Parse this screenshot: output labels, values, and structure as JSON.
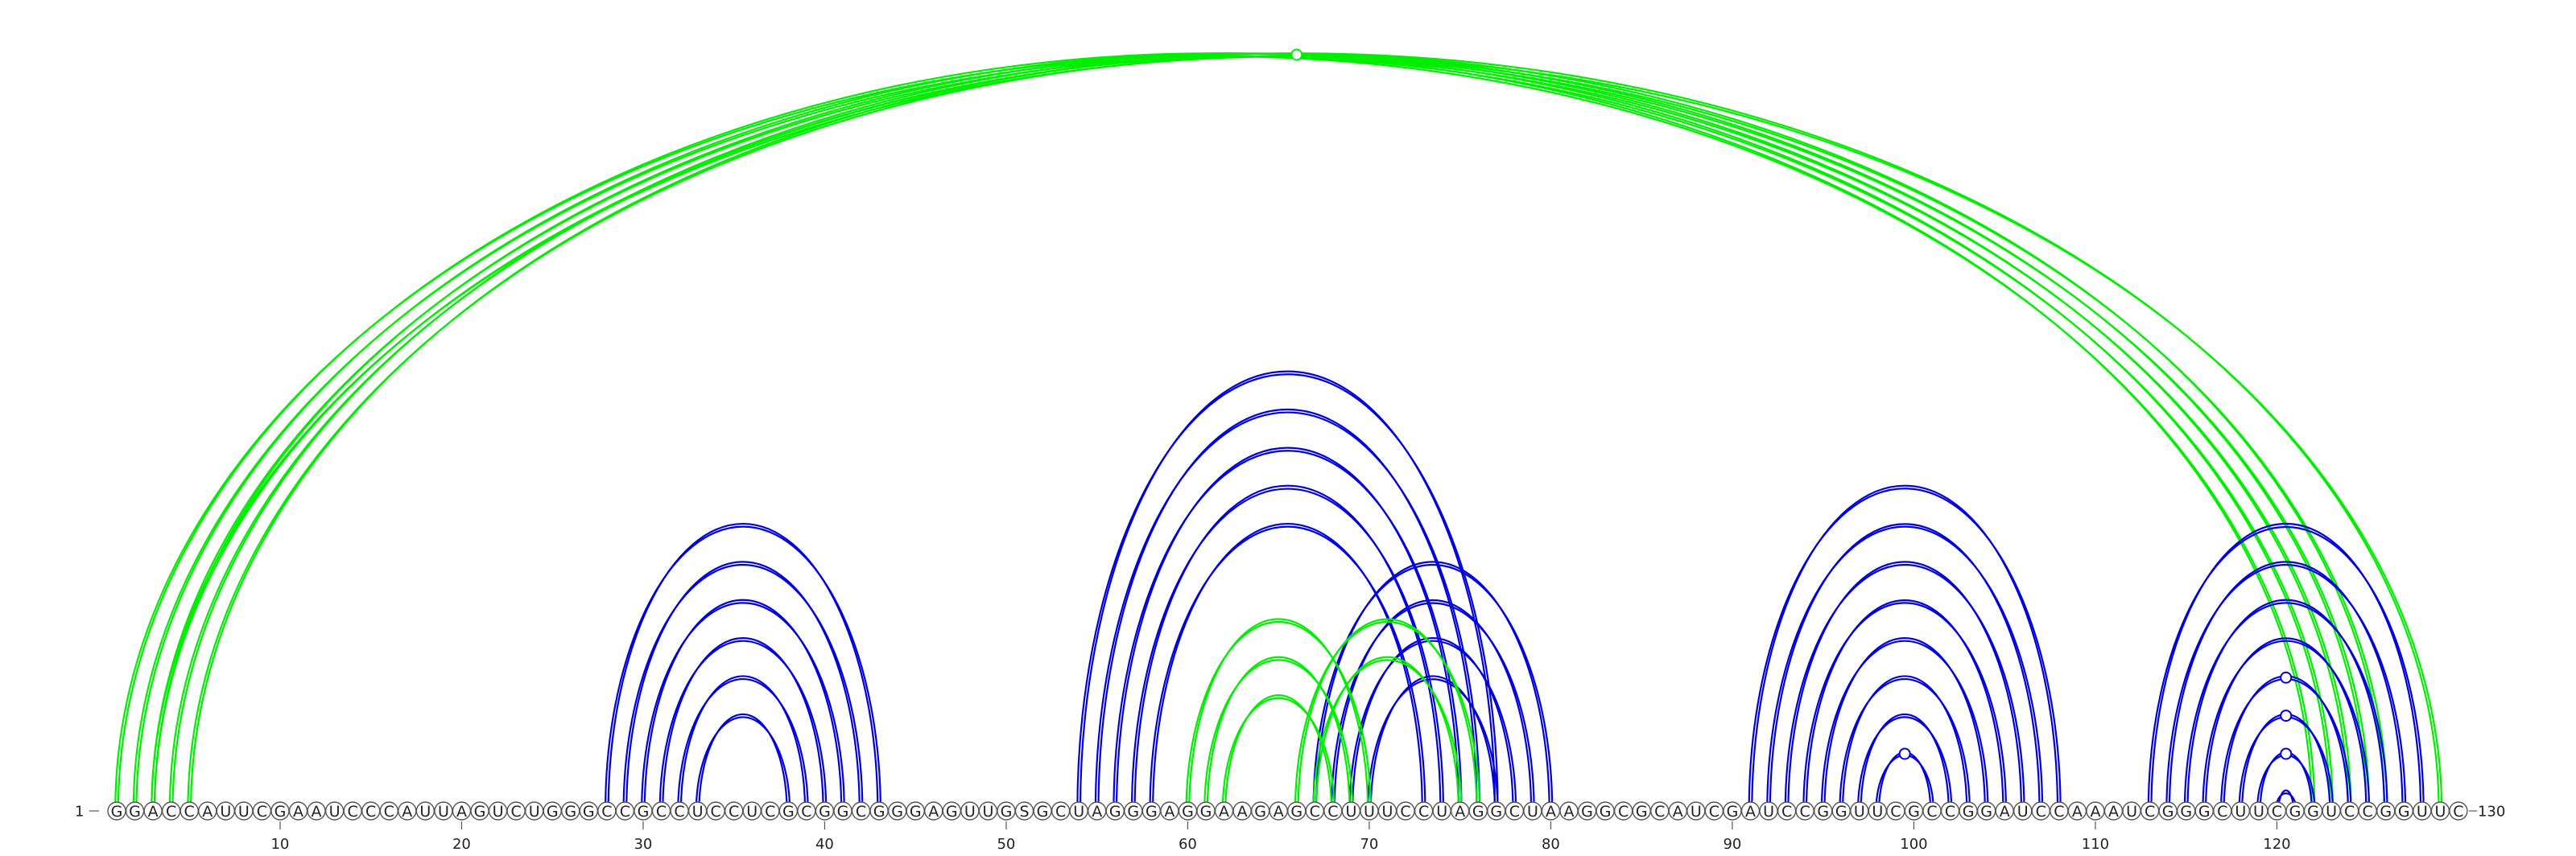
{
  "sequence": "GGACCAUUCGAAUCCCAUUAGUCUGGGCCGCCUCCUCGCGGCGGGAGUUGSGCUAGGGAGGAAGAGCCUUUCCUAGGCUAAGGCGCAUCGAUCCGGUUCGCCGGAUCCAAAUCGGGCUUCGGUCCGGUUC",
  "start_label": "1",
  "end_label": "130",
  "axis": {
    "ticks": [
      {
        "pos": 10,
        "label": "10"
      },
      {
        "pos": 20,
        "label": "20"
      },
      {
        "pos": 30,
        "label": "30"
      },
      {
        "pos": 40,
        "label": "40"
      },
      {
        "pos": 50,
        "label": "50"
      },
      {
        "pos": 60,
        "label": "60"
      },
      {
        "pos": 70,
        "label": "70"
      },
      {
        "pos": 80,
        "label": "80"
      },
      {
        "pos": 90,
        "label": "90"
      },
      {
        "pos": 100,
        "label": "100"
      },
      {
        "pos": 110,
        "label": "110"
      },
      {
        "pos": 120,
        "label": "120"
      }
    ]
  },
  "colors": {
    "green": "#00ee00",
    "blue": "#0000dd"
  },
  "arc_groups": [
    {
      "color": "green",
      "double": true,
      "pairs": [
        [
          1,
          122
        ],
        [
          2,
          123
        ],
        [
          3,
          124
        ],
        [
          4,
          125
        ],
        [
          5,
          126
        ]
      ]
    },
    {
      "color": "green",
      "double": true,
      "pairs": [
        [
          3,
          129
        ]
      ]
    },
    {
      "color": "blue",
      "double": true,
      "pairs": [
        [
          28,
          43
        ],
        [
          29,
          42
        ],
        [
          30,
          41
        ],
        [
          31,
          40
        ],
        [
          32,
          39
        ],
        [
          33,
          38
        ]
      ]
    },
    {
      "color": "blue",
      "double": true,
      "pairs": [
        [
          54,
          77
        ],
        [
          55,
          76
        ],
        [
          56,
          75
        ],
        [
          57,
          74
        ],
        [
          58,
          73
        ]
      ]
    },
    {
      "color": "blue",
      "double": true,
      "pairs": [
        [
          67,
          80
        ],
        [
          68,
          79
        ],
        [
          69,
          78
        ],
        [
          70,
          77
        ]
      ]
    },
    {
      "color": "green",
      "double": true,
      "pairs": [
        [
          60,
          70
        ],
        [
          61,
          69
        ],
        [
          62,
          68
        ],
        [
          66,
          76
        ],
        [
          67,
          75
        ]
      ]
    },
    {
      "color": "blue",
      "double": true,
      "pairs": [
        [
          91,
          108
        ],
        [
          92,
          107
        ],
        [
          93,
          106
        ],
        [
          94,
          105
        ],
        [
          95,
          104
        ],
        [
          96,
          103
        ],
        [
          97,
          102
        ],
        [
          98,
          101
        ]
      ]
    },
    {
      "color": "blue",
      "double": true,
      "pairs": [
        [
          113,
          128
        ],
        [
          114,
          127
        ],
        [
          115,
          126
        ],
        [
          116,
          125
        ],
        [
          117,
          124
        ],
        [
          118,
          123
        ],
        [
          119,
          122
        ],
        [
          120,
          121
        ]
      ]
    }
  ],
  "markers": [
    {
      "i": 3,
      "j": 129,
      "color": "green"
    },
    {
      "i": 98,
      "j": 101,
      "color": "blue"
    },
    {
      "i": 117,
      "j": 124,
      "color": "blue"
    },
    {
      "i": 118,
      "j": 123,
      "color": "blue"
    },
    {
      "i": 119,
      "j": 122,
      "color": "blue"
    }
  ]
}
